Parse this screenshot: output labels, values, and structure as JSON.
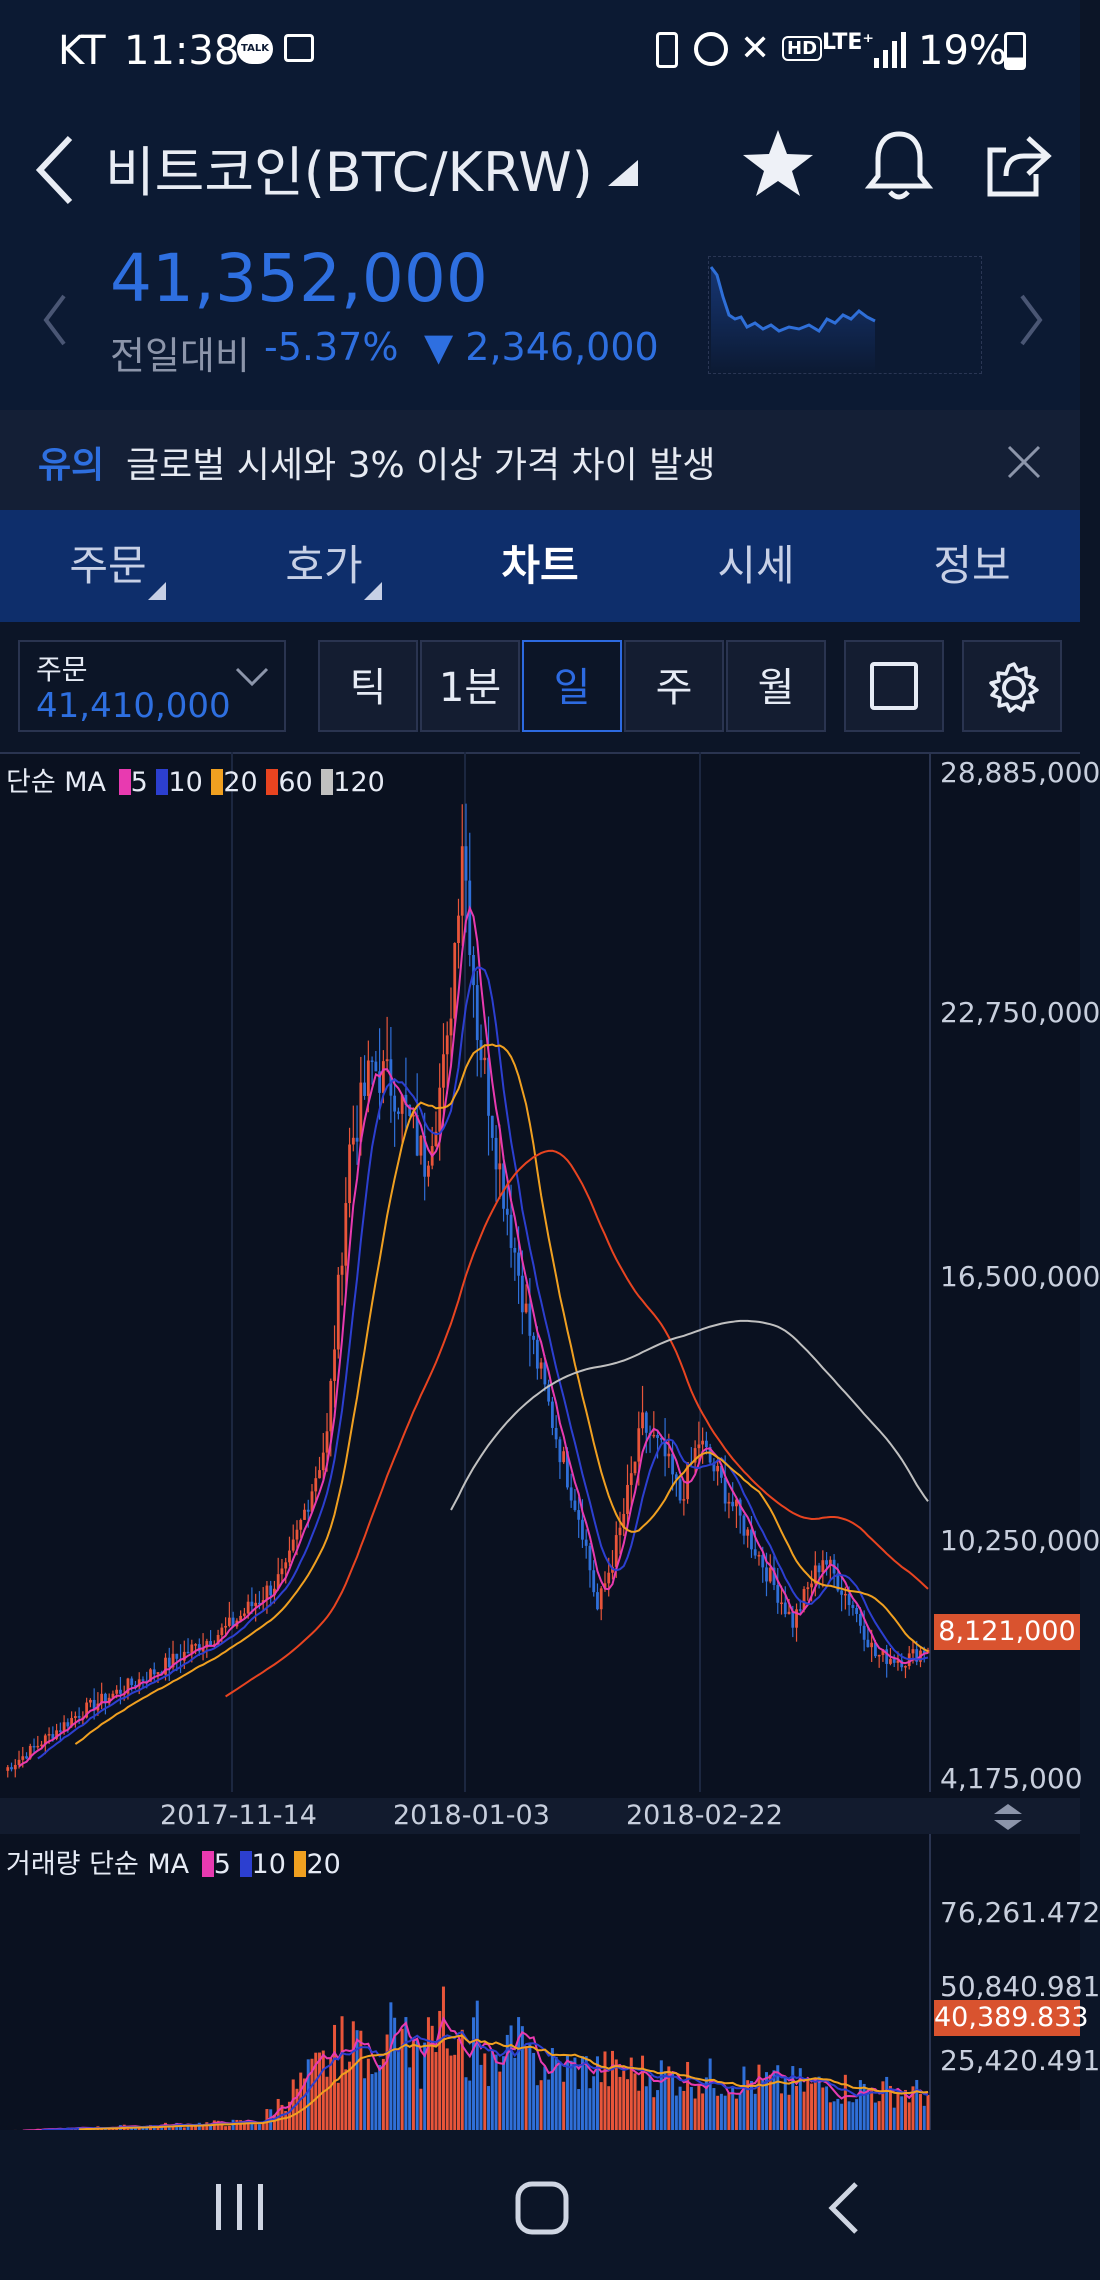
{
  "status_bar": {
    "carrier": "KT",
    "time": "11:38",
    "battery": "19%",
    "icons": [
      "talk-icon",
      "image-icon",
      "battery-saver-icon",
      "alarm-icon",
      "mute-icon",
      "hd-icon",
      "lte-icon",
      "signal-icon",
      "battery-icon"
    ],
    "talk_text": "TALK",
    "hd_text": "HD",
    "lte_text": "LTE⁺"
  },
  "header": {
    "title": "비트코인(BTC/KRW)",
    "price": "41,352,000",
    "change_label": "전일대비",
    "change_pct": "-5.37%",
    "change_amount": "▼ 2,346,000",
    "color_down": "#2e6fe0"
  },
  "notice": {
    "badge": "유의",
    "text": "글로벌 시세와 3% 이상 가격 차이 발생"
  },
  "tabs": [
    {
      "label": "주문"
    },
    {
      "label": "호가"
    },
    {
      "label": "차트"
    },
    {
      "label": "시세"
    },
    {
      "label": "정보"
    }
  ],
  "controls": {
    "order_label": "주문",
    "order_price": "41,410,000",
    "periods": [
      "틱",
      "1분",
      "일",
      "주",
      "월"
    ],
    "active_period": "일"
  },
  "chart_data": {
    "type": "line",
    "legend": {
      "prefix": "단순 MA",
      "items": [
        {
          "label": "5",
          "color": "#e83ab0"
        },
        {
          "label": "10",
          "color": "#2c3fd0"
        },
        {
          "label": "20",
          "color": "#f0a020"
        },
        {
          "label": "60",
          "color": "#e84420"
        },
        {
          "label": "120",
          "color": "#c0c0c0"
        }
      ]
    },
    "y_ticks": [
      "28,885,000",
      "22,750,000",
      "16,500,000",
      "10,250,000",
      "4,175,000"
    ],
    "y_values": [
      28885000,
      22750000,
      16500000,
      10250000,
      4175000
    ],
    "current_price_label": "8,121,000",
    "current_price": 8121000,
    "x_ticks": [
      "2017-11-14",
      "2018-01-03",
      "2018-02-22"
    ],
    "volume": {
      "legend_prefix": "거래량 단순 MA",
      "items": [
        {
          "label": "5",
          "color": "#e83ab0"
        },
        {
          "label": "10",
          "color": "#2c3fd0"
        },
        {
          "label": "20",
          "color": "#f0a020"
        }
      ],
      "y_ticks": [
        "76,261.472",
        "50,840.981",
        "25,420.491"
      ],
      "y_values": [
        76261.472,
        50840.981,
        25420.491
      ],
      "current_label": "40,389.833",
      "current": 40389.833
    },
    "colors": {
      "up": "#e8553a",
      "down": "#2f6fd8",
      "grid": "#1c2740",
      "bg": "#0a1120"
    }
  },
  "nav": {
    "buttons": [
      "recent-apps-icon",
      "home-icon",
      "back-icon"
    ]
  }
}
